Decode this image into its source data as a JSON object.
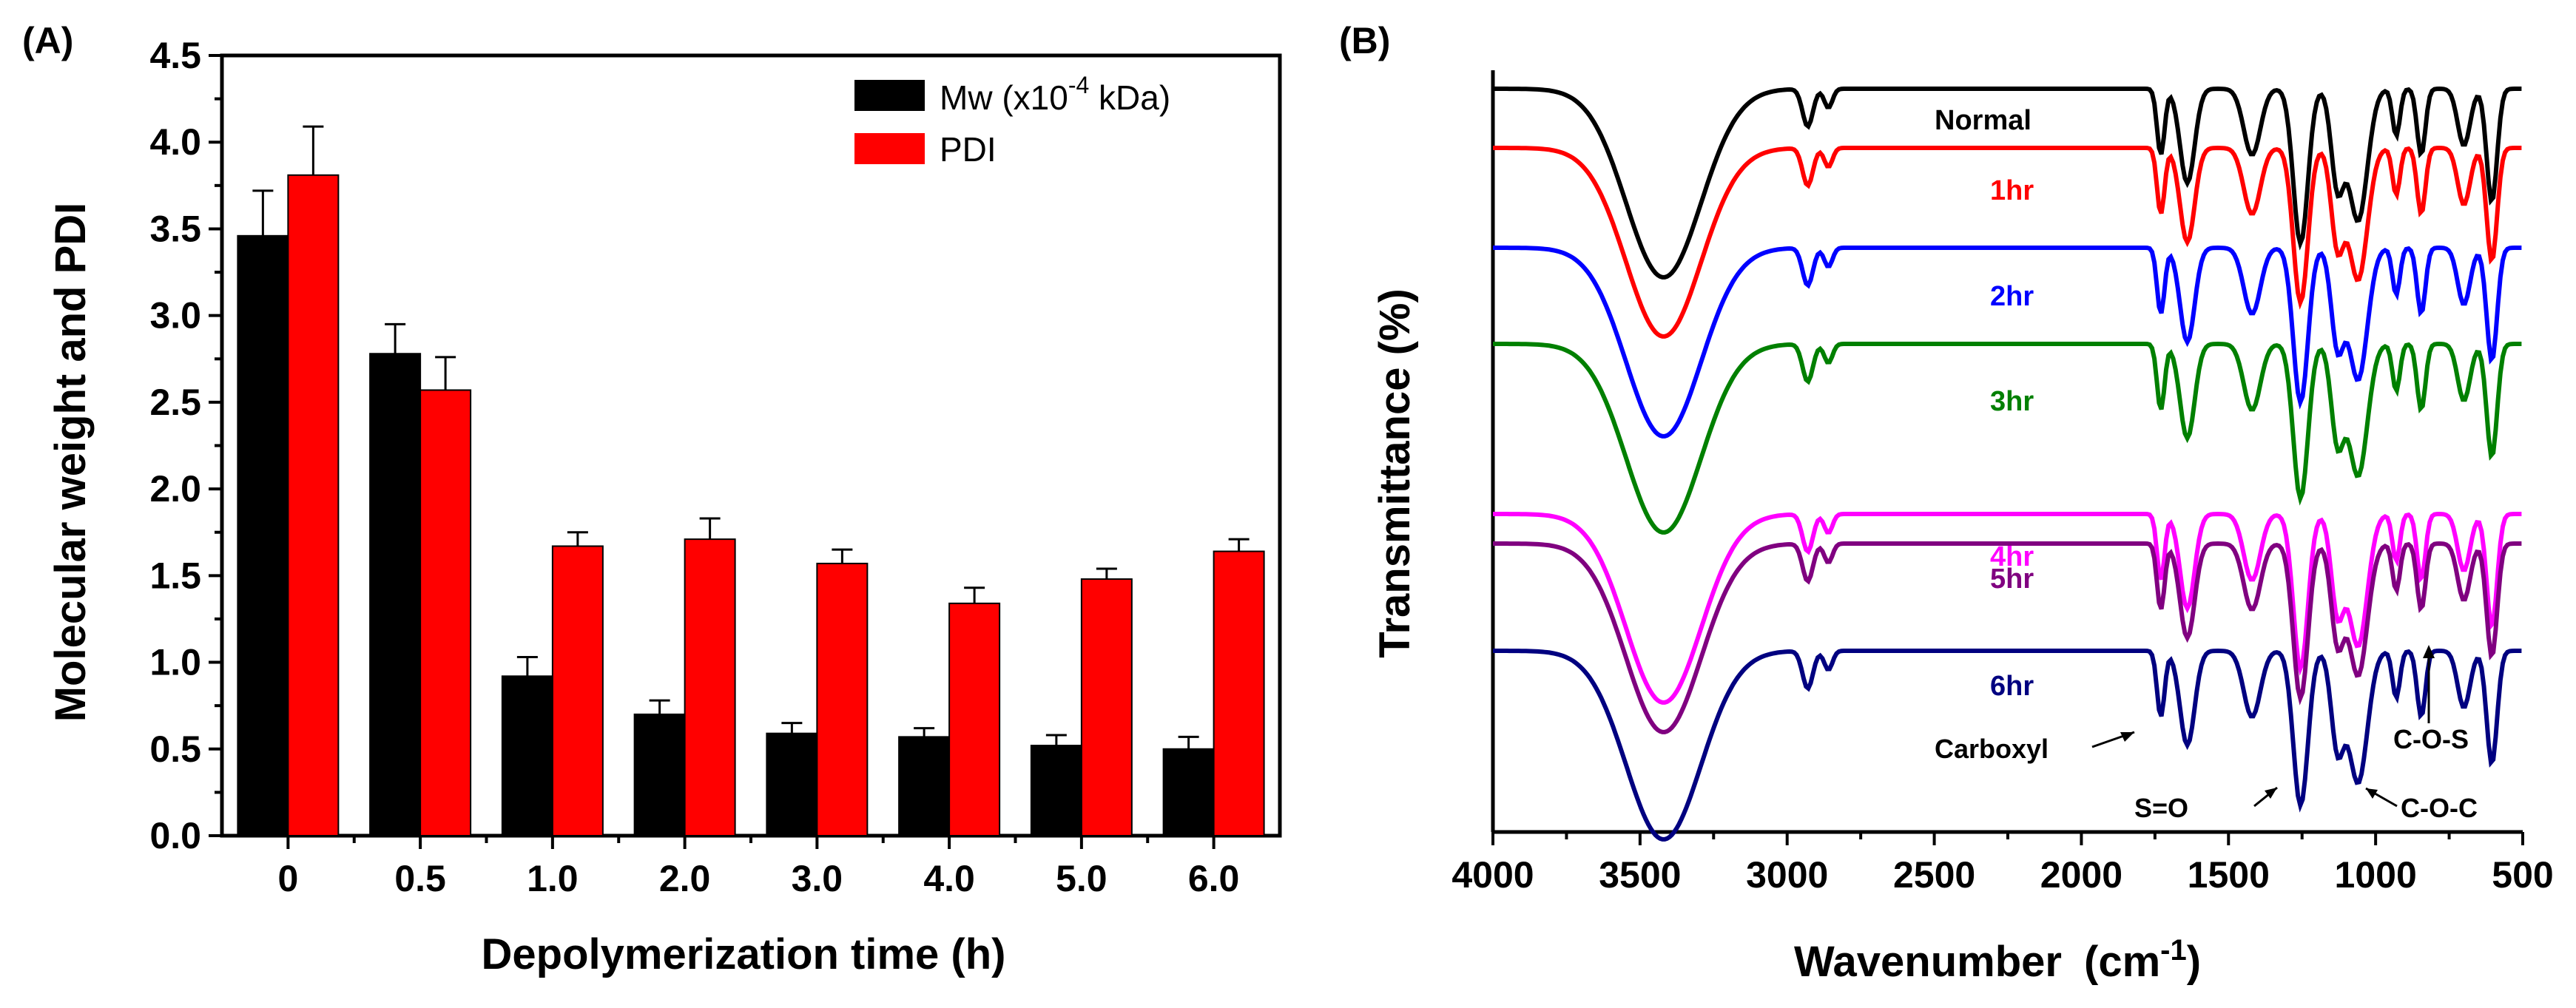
{
  "chart_data": [
    {
      "panel": "(A)",
      "type": "bar",
      "ylabel": "Molecular weight and PDI",
      "xlabel": "Depolymerization time (h)",
      "ylim": [
        0,
        4.5
      ],
      "yticks": [
        "0.0",
        "0.5",
        "1.0",
        "1.5",
        "2.0",
        "2.5",
        "3.0",
        "3.5",
        "4.0",
        "4.5"
      ],
      "categories": [
        "0",
        "0.5",
        "1.0",
        "2.0",
        "3.0",
        "4.0",
        "5.0",
        "6.0"
      ],
      "legend": {
        "mw_prefix": "Mw (x10",
        "mw_exp": "-4",
        "mw_suffix": " kDa)",
        "pdi": "PDI"
      },
      "series": [
        {
          "name": "Mw (x10-4 kDa)",
          "color": "#000000",
          "values": [
            3.46,
            2.78,
            0.92,
            0.7,
            0.59,
            0.57,
            0.52,
            0.5
          ],
          "errors": [
            0.26,
            0.17,
            0.11,
            0.08,
            0.06,
            0.05,
            0.06,
            0.07
          ]
        },
        {
          "name": "PDI",
          "color": "#ff0000",
          "values": [
            3.81,
            2.57,
            1.67,
            1.71,
            1.57,
            1.34,
            1.48,
            1.64
          ],
          "errors": [
            0.28,
            0.19,
            0.08,
            0.12,
            0.08,
            0.09,
            0.06,
            0.07
          ]
        }
      ]
    },
    {
      "panel": "(B)",
      "type": "line",
      "ylabel": "Transmittance (%)",
      "xlabel_main": "Wavenumber",
      "xlabel_unit": "cm",
      "xlabel_exp": "-1",
      "xlim": [
        4000,
        500
      ],
      "xticks": [
        4000,
        3500,
        3000,
        2500,
        2000,
        1500,
        1000,
        500
      ],
      "series": [
        {
          "name": "Normal",
          "color": "#000000"
        },
        {
          "name": "1hr",
          "color": "#ff0000"
        },
        {
          "name": "2hr",
          "color": "#0000ff"
        },
        {
          "name": "3hr",
          "color": "#008000"
        },
        {
          "name": "4hr",
          "color": "#ff00ff"
        },
        {
          "name": "5hr",
          "color": "#800080"
        },
        {
          "name": "6hr",
          "color": "#000080"
        }
      ],
      "annotations": [
        "Carboxyl",
        "S=O",
        "C-O-C",
        "C-O-S"
      ]
    }
  ]
}
